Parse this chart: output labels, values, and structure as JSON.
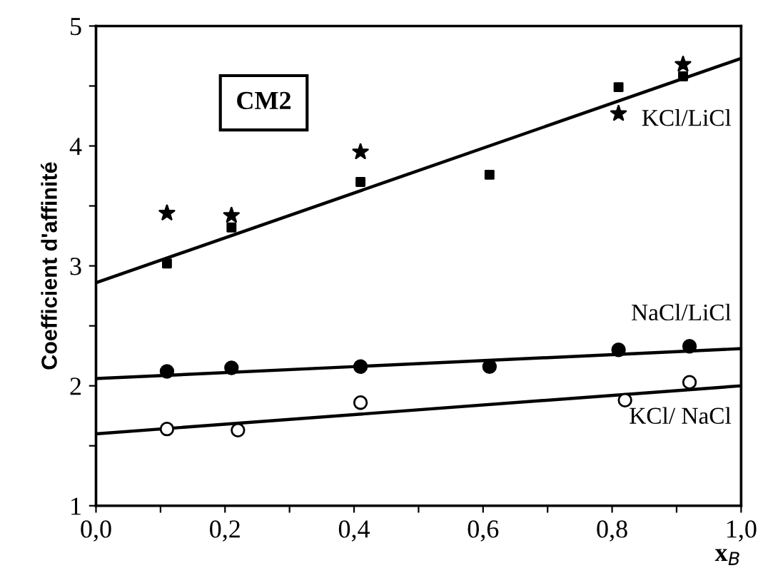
{
  "chart_data": {
    "type": "scatter",
    "xlabel": "x$_{B}$",
    "ylabel": "Coefficient d'affinité",
    "xlim": [
      0,
      1
    ],
    "ylim": [
      1,
      5
    ],
    "xticks": [
      {
        "value": 0,
        "label": "0,0"
      },
      {
        "value": 0.1,
        "label": null
      },
      {
        "value": 0.2,
        "label": "0,2"
      },
      {
        "value": 0.3,
        "label": null
      },
      {
        "value": 0.4,
        "label": "0,4"
      },
      {
        "value": 0.5,
        "label": null
      },
      {
        "value": 0.6,
        "label": "0,6"
      },
      {
        "value": 0.7,
        "label": null
      },
      {
        "value": 0.8,
        "label": "0,8"
      },
      {
        "value": 0.9,
        "label": null
      },
      {
        "value": 1,
        "label": "1,0"
      }
    ],
    "yticks": [
      1,
      {
        "value": 1.5,
        "label": null
      },
      2,
      {
        "value": 2.5,
        "label": null
      },
      3,
      {
        "value": 3.5,
        "label": null
      },
      4,
      {
        "value": 4.5,
        "label": null
      },
      5
    ],
    "grid": false,
    "legend": false,
    "annotations": [
      {
        "text": "CM2"
      }
    ],
    "series": [
      {
        "name": "KCl/LiCl",
        "marker": "square",
        "color": "#000000",
        "x": [
          0.11,
          0.21,
          0.41,
          0.61,
          0.81,
          0.91
        ],
        "values": [
          3.02,
          3.32,
          3.7,
          3.76,
          4.49,
          4.58
        ]
      },
      {
        "marker": "star",
        "color": "#000000",
        "x": [
          0.11,
          0.21,
          0.41,
          0.81,
          0.91
        ],
        "values": [
          3.44,
          3.42,
          3.95,
          4.27,
          4.68
        ]
      },
      {
        "type": "line",
        "marker": "none",
        "line_style": "solid",
        "color": "#000000",
        "x": [
          0,
          1
        ],
        "values": [
          2.86,
          4.73
        ]
      },
      {
        "name": "NaCl/LiCl",
        "marker": "circle",
        "color": "#000000",
        "x": [
          0.11,
          0.21,
          0.41,
          0.61,
          0.81,
          0.92
        ],
        "values": [
          2.12,
          2.15,
          2.16,
          2.16,
          2.3,
          2.33
        ]
      },
      {
        "type": "line",
        "marker": "none",
        "line_style": "solid",
        "color": "#000000",
        "x": [
          0,
          1
        ],
        "values": [
          2.06,
          2.31
        ]
      },
      {
        "name": "KCl/ NaCl",
        "marker": "circle",
        "color": "#ffffff",
        "x": [
          0.11,
          0.22,
          0.41,
          0.82,
          0.92
        ],
        "values": [
          1.64,
          1.63,
          1.86,
          1.88,
          2.03
        ]
      },
      {
        "type": "line",
        "marker": "none",
        "line_style": "solid",
        "color": "#000000",
        "x": [
          0,
          1
        ],
        "values": [
          1.6,
          2.0
        ]
      }
    ]
  }
}
